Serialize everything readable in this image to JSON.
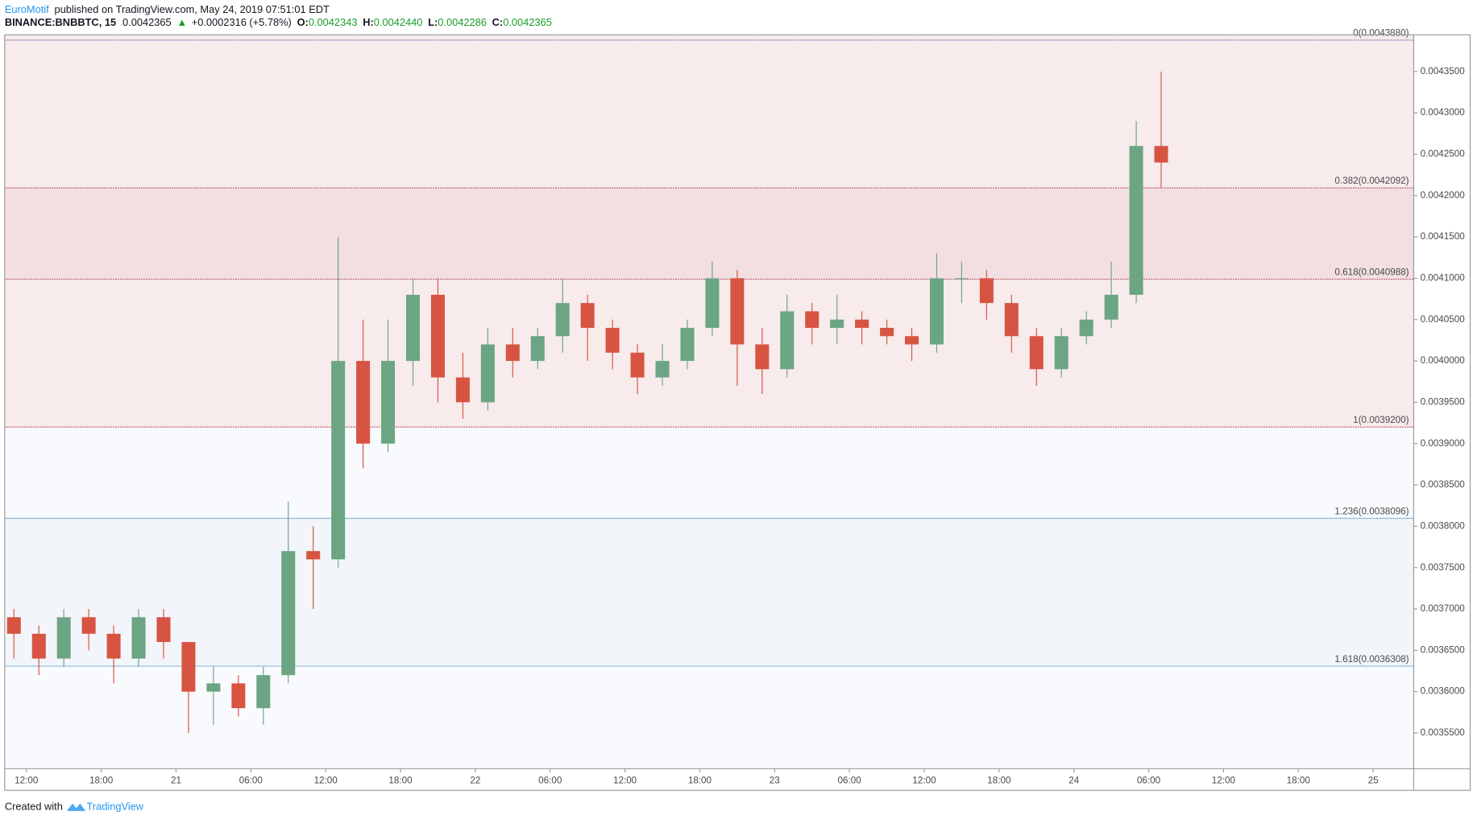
{
  "header": {
    "author": "EuroMotif",
    "published": "published on TradingView.com, May 24, 2019 07:51:01 EDT",
    "symbol": "BINANCE:BNBBTC, 15",
    "price": "0.0042365",
    "change": "+0.0002316 (+5.78%)",
    "ohlc": [
      {
        "label": "O:",
        "value": "0.0042343"
      },
      {
        "label": "H:",
        "value": "0.0042440"
      },
      {
        "label": "L:",
        "value": "0.0042286"
      },
      {
        "label": "C:",
        "value": "0.0042365"
      }
    ]
  },
  "footer": {
    "text": "Created with",
    "brand": "TradingView"
  },
  "chart_data": {
    "type": "candlestick",
    "x": [
      11,
      13,
      15,
      17,
      19,
      21,
      23,
      25,
      27,
      29,
      31,
      33,
      35,
      37,
      39,
      41,
      43,
      45,
      47,
      49,
      51,
      53,
      55,
      57,
      59,
      61,
      63,
      65,
      67,
      69,
      71,
      73,
      75,
      77,
      79,
      81,
      83,
      85,
      87,
      89,
      91,
      93,
      95,
      97,
      99,
      101,
      103
    ],
    "open": [
      0.00369,
      0.00367,
      0.00364,
      0.00369,
      0.00367,
      0.00364,
      0.00369,
      0.00366,
      0.0036,
      0.00361,
      0.00358,
      0.00362,
      0.00377,
      0.00376,
      0.004,
      0.0039,
      0.004,
      0.00408,
      0.00398,
      0.00395,
      0.00402,
      0.004,
      0.00403,
      0.00407,
      0.00404,
      0.00401,
      0.00398,
      0.004,
      0.00404,
      0.0041,
      0.00402,
      0.00399,
      0.00406,
      0.00404,
      0.00405,
      0.00404,
      0.00403,
      0.00402,
      0.0041,
      0.0041,
      0.00407,
      0.00403,
      0.00399,
      0.00403,
      0.00405,
      0.00408,
      0.00426
    ],
    "high": [
      0.0037,
      0.00368,
      0.0037,
      0.0037,
      0.00368,
      0.0037,
      0.0037,
      0.00366,
      0.00363,
      0.00362,
      0.00363,
      0.00383,
      0.0038,
      0.00415,
      0.00405,
      0.00405,
      0.0041,
      0.0041,
      0.00401,
      0.00404,
      0.00404,
      0.00404,
      0.0041,
      0.00408,
      0.00405,
      0.00402,
      0.00402,
      0.00405,
      0.00412,
      0.00411,
      0.00404,
      0.00408,
      0.00407,
      0.00408,
      0.00406,
      0.00405,
      0.00404,
      0.00413,
      0.00412,
      0.00411,
      0.00408,
      0.00404,
      0.00404,
      0.00406,
      0.00412,
      0.00429,
      0.00435
    ],
    "low": [
      0.00364,
      0.00362,
      0.00363,
      0.00365,
      0.00361,
      0.00363,
      0.00364,
      0.00355,
      0.00356,
      0.00357,
      0.00356,
      0.00361,
      0.0037,
      0.00375,
      0.00387,
      0.00389,
      0.00397,
      0.00395,
      0.00393,
      0.00394,
      0.00398,
      0.00399,
      0.00401,
      0.004,
      0.00399,
      0.00396,
      0.00397,
      0.00399,
      0.00403,
      0.00397,
      0.00396,
      0.00398,
      0.00402,
      0.00402,
      0.00402,
      0.00402,
      0.004,
      0.00401,
      0.00407,
      0.00405,
      0.00401,
      0.00397,
      0.00398,
      0.00402,
      0.00404,
      0.00407,
      0.00421
    ],
    "close": [
      0.00367,
      0.00364,
      0.00369,
      0.00367,
      0.00364,
      0.00369,
      0.00366,
      0.0036,
      0.00361,
      0.00358,
      0.00362,
      0.00377,
      0.00376,
      0.004,
      0.0039,
      0.004,
      0.00408,
      0.00398,
      0.00395,
      0.00402,
      0.004,
      0.00403,
      0.00407,
      0.00404,
      0.00401,
      0.00398,
      0.004,
      0.00404,
      0.0041,
      0.00402,
      0.00399,
      0.00406,
      0.00404,
      0.00405,
      0.00404,
      0.00403,
      0.00402,
      0.0041,
      0.0041,
      0.00407,
      0.00403,
      0.00399,
      0.00403,
      0.00405,
      0.00408,
      0.00426,
      0.00424
    ],
    "up_color": "#6ba583",
    "down_color": "#d75442",
    "xlim": [
      10.26,
      123.25
    ],
    "xticks": [
      {
        "value": 12,
        "label": "12:00"
      },
      {
        "value": 18,
        "label": "18:00"
      },
      {
        "value": 24,
        "label": "21"
      },
      {
        "value": 30,
        "label": "06:00"
      },
      {
        "value": 36,
        "label": "12:00"
      },
      {
        "value": 42,
        "label": "18:00"
      },
      {
        "value": 48,
        "label": "22"
      },
      {
        "value": 54,
        "label": "06:00"
      },
      {
        "value": 60,
        "label": "12:00"
      },
      {
        "value": 66,
        "label": "18:00"
      },
      {
        "value": 72,
        "label": "23"
      },
      {
        "value": 78,
        "label": "06:00"
      },
      {
        "value": 84,
        "label": "12:00"
      },
      {
        "value": 90,
        "label": "18:00"
      },
      {
        "value": 96,
        "label": "24"
      },
      {
        "value": 102,
        "label": "06:00"
      },
      {
        "value": 108,
        "label": "12:00"
      },
      {
        "value": 114,
        "label": "18:00"
      },
      {
        "value": 120,
        "label": "25"
      }
    ],
    "ylim": [
      0.0035068,
      0.0043944
    ],
    "yticks": [
      {
        "value": 0.00355,
        "label": "0.0035500"
      },
      {
        "value": 0.0036,
        "label": "0.0036000"
      },
      {
        "value": 0.00365,
        "label": "0.0036500"
      },
      {
        "value": 0.0037,
        "label": "0.0037000"
      },
      {
        "value": 0.00375,
        "label": "0.0037500"
      },
      {
        "value": 0.0038,
        "label": "0.0038000"
      },
      {
        "value": 0.00385,
        "label": "0.0038500"
      },
      {
        "value": 0.0039,
        "label": "0.0039000"
      },
      {
        "value": 0.00395,
        "label": "0.0039500"
      },
      {
        "value": 0.004,
        "label": "0.0040000"
      },
      {
        "value": 0.00405,
        "label": "0.0040500"
      },
      {
        "value": 0.0041,
        "label": "0.0041000"
      },
      {
        "value": 0.00415,
        "label": "0.0041500"
      },
      {
        "value": 0.0042,
        "label": "0.0042000"
      },
      {
        "value": 0.00425,
        "label": "0.0042500"
      },
      {
        "value": 0.0043,
        "label": "0.0043000"
      },
      {
        "value": 0.00435,
        "label": "0.0043500"
      }
    ],
    "fib_levels": [
      {
        "value": 0.004388,
        "label": "0(0.0043880)",
        "color": "#7b6fb0",
        "fill": "#f7ebec"
      },
      {
        "value": 0.0042092,
        "label": "0.382(0.0042092)",
        "color": "#b0485a",
        "fill": "#f3dfe1"
      },
      {
        "value": 0.0040988,
        "label": "0.618(0.0040988)",
        "color": "#b0485a",
        "fill": "#f7ebec"
      },
      {
        "value": 0.00392,
        "label": "1(0.0039200)",
        "color": "#c0404a",
        "fill": "#f9fafd"
      },
      {
        "value": 0.0038096,
        "label": "1.236(0.0038096)",
        "color": "#8fbcd8",
        "fill": "#f2f5fa"
      },
      {
        "value": 0.0036308,
        "label": "1.618(0.0036308)",
        "color": "#8fbcd8",
        "fill": "#f9fafd"
      }
    ]
  }
}
